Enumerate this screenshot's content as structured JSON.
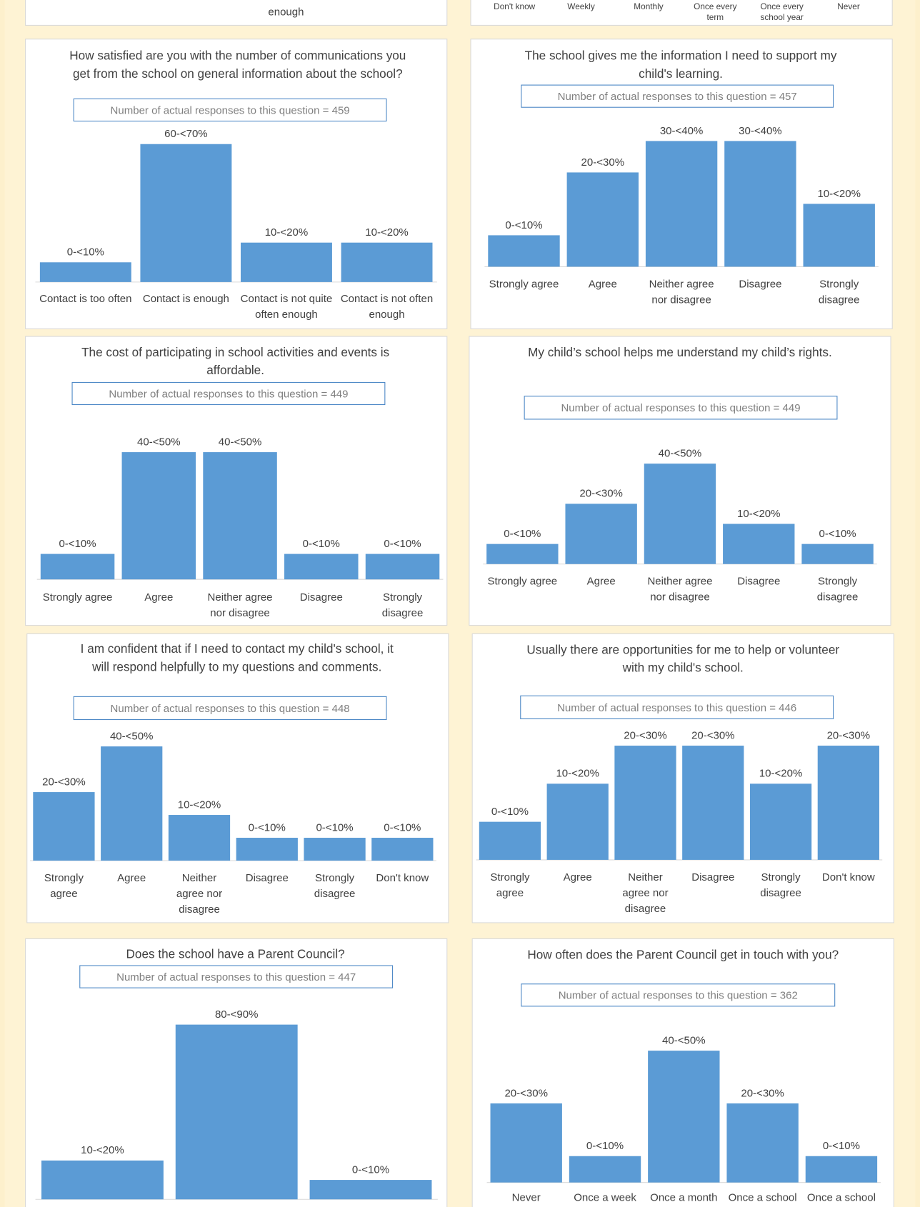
{
  "fragments": {
    "left_category": "enough",
    "right_categories": [
      "Don't know",
      "Weekly",
      "Monthly",
      "Once every term",
      "Once every school year",
      "Never"
    ]
  },
  "chart_data": [
    {
      "type": "bar",
      "title": "How satisfied are you with the number of communications you get from the school on general information about the school?",
      "subtitle": "Number of actual responses to this question = 459",
      "color": "#5b9bd5",
      "categories": [
        "Contact is too often",
        "Contact is enough",
        "Contact is not quite often enough",
        "Contact is not often enough"
      ],
      "values": [
        10,
        70,
        20,
        20
      ],
      "value_labels": [
        "0-<10%",
        "60-<70%",
        "10-<20%",
        "10-<20%"
      ]
    },
    {
      "type": "bar",
      "title": "The school gives me the information I need to support my child's learning.",
      "subtitle": "Number of actual responses to this question = 457",
      "color": "#5b9bd5",
      "categories": [
        "Strongly agree",
        "Agree",
        "Neither agree nor disagree",
        "Disagree",
        "Strongly disagree"
      ],
      "values": [
        10,
        30,
        40,
        40,
        20
      ],
      "value_labels": [
        "0-<10%",
        "20-<30%",
        "30-<40%",
        "30-<40%",
        "10-<20%"
      ]
    },
    {
      "type": "bar",
      "title": "The cost of participating in school activities and events is affordable.",
      "subtitle": "Number of actual responses to this question = 449",
      "color": "#5b9bd5",
      "categories": [
        "Strongly agree",
        "Agree",
        "Neither agree nor disagree",
        "Disagree",
        "Strongly disagree"
      ],
      "values": [
        10,
        50,
        50,
        10,
        10
      ],
      "value_labels": [
        "0-<10%",
        "40-<50%",
        "40-<50%",
        "0-<10%",
        "0-<10%"
      ]
    },
    {
      "type": "bar",
      "title": "My child’s school helps me understand my child’s rights.",
      "subtitle": "Number of actual responses to this question = 449",
      "color": "#5b9bd5",
      "categories": [
        "Strongly agree",
        "Agree",
        "Neither agree nor disagree",
        "Disagree",
        "Strongly disagree"
      ],
      "values": [
        10,
        30,
        50,
        20,
        10
      ],
      "value_labels": [
        "0-<10%",
        "20-<30%",
        "40-<50%",
        "10-<20%",
        "0-<10%"
      ]
    },
    {
      "type": "bar",
      "title": "I am confident that if I need to contact my child's school, it will respond helpfully to my questions and comments.",
      "subtitle": "Number of actual responses to this question = 448",
      "color": "#5b9bd5",
      "categories": [
        "Strongly agree",
        "Agree",
        "Neither agree nor disagree",
        "Disagree",
        "Strongly disagree",
        "Don't know"
      ],
      "values": [
        30,
        50,
        20,
        10,
        10,
        10
      ],
      "value_labels": [
        "20-<30%",
        "40-<50%",
        "10-<20%",
        "0-<10%",
        "0-<10%",
        "0-<10%"
      ]
    },
    {
      "type": "bar",
      "title": "Usually there are opportunities for me to help or volunteer with my child's school.",
      "subtitle": "Number of actual responses to this question = 446",
      "color": "#5b9bd5",
      "categories": [
        "Strongly agree",
        "Agree",
        "Neither agree nor disagree",
        "Disagree",
        "Strongly disagree",
        "Don't know"
      ],
      "values": [
        10,
        20,
        30,
        30,
        20,
        30
      ],
      "value_labels": [
        "0-<10%",
        "10-<20%",
        "20-<30%",
        "20-<30%",
        "10-<20%",
        "20-<30%"
      ]
    },
    {
      "type": "bar",
      "title": "Does the school have a Parent Council?",
      "subtitle": "Number of actual responses to this question = 447",
      "color": "#5b9bd5",
      "categories": [
        null,
        null,
        null
      ],
      "values": [
        20,
        90,
        10
      ],
      "value_labels": [
        "10-<20%",
        "80-<90%",
        "0-<10%"
      ]
    },
    {
      "type": "bar",
      "title": "How often does the Parent Council get in touch with you?",
      "subtitle": "Number of actual responses to this question = 362",
      "color": "#5b9bd5",
      "categories": [
        "Never",
        "Once a week",
        "Once a month",
        "Once a school",
        "Once a school"
      ],
      "values": [
        30,
        10,
        50,
        30,
        10
      ],
      "value_labels": [
        "20-<30%",
        "0-<10%",
        "40-<50%",
        "20-<30%",
        "0-<10%"
      ]
    }
  ]
}
